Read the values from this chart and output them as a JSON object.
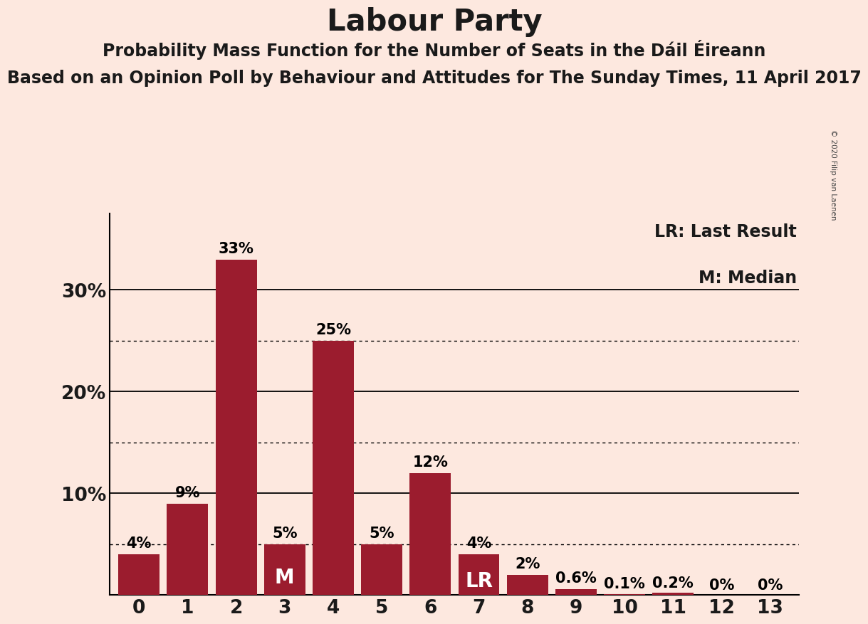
{
  "title": "Labour Party",
  "subtitle1": "Probability Mass Function for the Number of Seats in the Dáil Éireann",
  "subtitle2": "Based on an Opinion Poll by Behaviour and Attitudes for The Sunday Times, 11 April 2017",
  "copyright": "© 2020 Filip van Laenen",
  "categories": [
    0,
    1,
    2,
    3,
    4,
    5,
    6,
    7,
    8,
    9,
    10,
    11,
    12,
    13
  ],
  "values": [
    0.04,
    0.09,
    0.33,
    0.05,
    0.25,
    0.05,
    0.12,
    0.04,
    0.02,
    0.006,
    0.001,
    0.002,
    0.0,
    0.0
  ],
  "labels": [
    "4%",
    "9%",
    "33%",
    "5%",
    "25%",
    "5%",
    "12%",
    "4%",
    "2%",
    "0.6%",
    "0.1%",
    "0.2%",
    "0%",
    "0%"
  ],
  "bar_color": "#9b1c2e",
  "background_color": "#fde8df",
  "median_bar": 3,
  "lr_bar": 7,
  "legend_lr": "LR: Last Result",
  "legend_m": "M: Median",
  "yticks": [
    0.0,
    0.1,
    0.2,
    0.3
  ],
  "ytick_labels": [
    "",
    "10%",
    "20%",
    "30%"
  ],
  "dotted_lines": [
    0.05,
    0.15,
    0.25
  ],
  "solid_lines": [
    0.1,
    0.2,
    0.3
  ],
  "ylim": [
    0,
    0.375
  ],
  "title_fontsize": 30,
  "subtitle1_fontsize": 17,
  "subtitle2_fontsize": 17,
  "bar_label_fontsize": 15,
  "axis_label_fontsize": 19,
  "legend_fontsize": 17
}
